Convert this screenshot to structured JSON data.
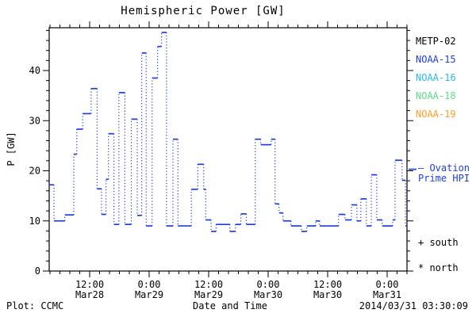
{
  "title": "Hemispheric Power [GW]",
  "legend": {
    "items": [
      {
        "label": "METP-02",
        "color": "#000000"
      },
      {
        "label": "NOAA-15",
        "color": "#1f3ed8"
      },
      {
        "label": "NOAA-16",
        "color": "#29b6ea"
      },
      {
        "label": "NOAA-18",
        "color": "#5fd98b"
      },
      {
        "label": "NOAA-19",
        "color": "#ff9d26"
      }
    ]
  },
  "annotations": {
    "ovation_line1": "– Ovation",
    "ovation_line2": "Prime HPI",
    "ovation_color": "#1f3ed8",
    "south": "+ south",
    "north": "* north"
  },
  "footer": {
    "plot_source": "Plot: CCMC",
    "xlabel": "Date and Time",
    "timestamp": "2014/03/31 03:30:09"
  },
  "chart_data": {
    "type": "line",
    "title": "Hemispheric Power [GW]",
    "xlabel": "Date and Time",
    "ylabel": "P [GW]",
    "ylim": [
      0,
      48.5
    ],
    "y_major_ticks": [
      0,
      10,
      20,
      30,
      40
    ],
    "y_minor_step_gw": 2,
    "x_hours_range": [
      3.8,
      76
    ],
    "x_minor_step_hours": 2,
    "x_major_ticks": [
      {
        "t": 12,
        "time": "12:00",
        "date": "Mar28"
      },
      {
        "t": 24,
        "time": "0:00",
        "date": "Mar29"
      },
      {
        "t": 36,
        "time": "12:00",
        "date": "Mar29"
      },
      {
        "t": 48,
        "time": "0:00",
        "date": "Mar30"
      },
      {
        "t": 60,
        "time": "12:00",
        "date": "Mar30"
      },
      {
        "t": 72,
        "time": "0:00",
        "date": "Mar31"
      }
    ],
    "grid": false,
    "legend_position": "right",
    "series": [
      {
        "name": "Ovation Prime HPI",
        "color": "#1f3ed8",
        "style": "step-dotted-vertical",
        "x_unit": "hours since Mar28 00:00",
        "points": [
          [
            3.8,
            17.2
          ],
          [
            4.8,
            10.0
          ],
          [
            7.0,
            11.2
          ],
          [
            8.8,
            23.3
          ],
          [
            9.4,
            28.3
          ],
          [
            10.6,
            31.4
          ],
          [
            12.3,
            36.4
          ],
          [
            13.5,
            16.4
          ],
          [
            14.4,
            11.3
          ],
          [
            15.3,
            18.3
          ],
          [
            15.8,
            27.4
          ],
          [
            16.9,
            9.3
          ],
          [
            17.9,
            35.6
          ],
          [
            19.1,
            9.3
          ],
          [
            20.4,
            30.3
          ],
          [
            21.6,
            11.1
          ],
          [
            22.5,
            43.5
          ],
          [
            23.4,
            9.0
          ],
          [
            24.6,
            38.5
          ],
          [
            25.7,
            44.8
          ],
          [
            26.5,
            47.6
          ],
          [
            27.5,
            9.0
          ],
          [
            28.8,
            26.3
          ],
          [
            29.8,
            9.0
          ],
          [
            32.5,
            16.3
          ],
          [
            33.8,
            21.3
          ],
          [
            35.0,
            16.3
          ],
          [
            35.4,
            10.2
          ],
          [
            36.5,
            7.9
          ],
          [
            37.5,
            9.3
          ],
          [
            40.3,
            7.9
          ],
          [
            41.4,
            9.3
          ],
          [
            42.5,
            11.4
          ],
          [
            43.6,
            9.3
          ],
          [
            45.4,
            26.3
          ],
          [
            46.5,
            25.2
          ],
          [
            48.6,
            26.3
          ],
          [
            49.4,
            13.4
          ],
          [
            50.2,
            11.6
          ],
          [
            51.0,
            10.0
          ],
          [
            52.6,
            9.0
          ],
          [
            54.7,
            7.9
          ],
          [
            55.8,
            9.0
          ],
          [
            57.6,
            10.0
          ],
          [
            58.4,
            9.0
          ],
          [
            62.2,
            11.3
          ],
          [
            63.5,
            10.2
          ],
          [
            64.8,
            13.2
          ],
          [
            65.9,
            10.0
          ],
          [
            66.7,
            14.4
          ],
          [
            67.8,
            9.0
          ],
          [
            68.8,
            19.2
          ],
          [
            69.9,
            10.2
          ],
          [
            71.0,
            9.0
          ],
          [
            73.1,
            10.2
          ],
          [
            73.6,
            22.1
          ],
          [
            75.0,
            18.1
          ],
          [
            75.7,
            9.0
          ]
        ],
        "end_t": 76
      }
    ],
    "ovation_marker_gw": 20.3
  }
}
